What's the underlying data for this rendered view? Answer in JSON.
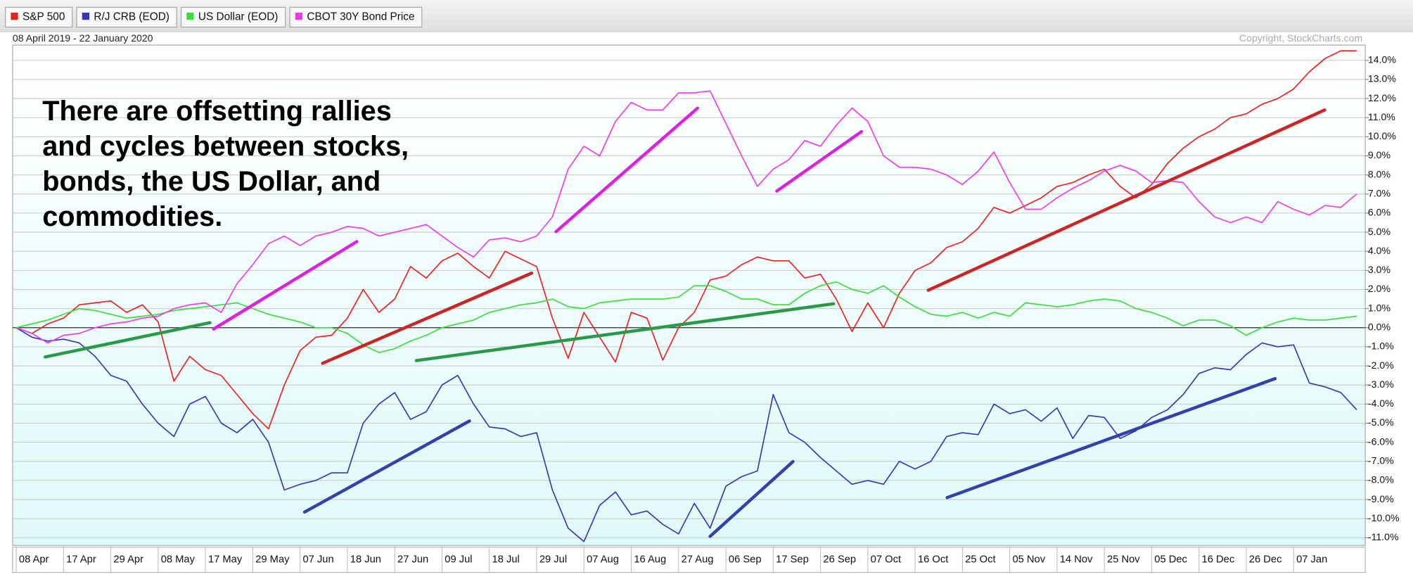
{
  "chart_data": {
    "type": "line",
    "subtitle": "08 April 2019 - 22 January 2020",
    "copyright": "Copyright, StockCharts.com",
    "annotation": [
      "There are offsetting rallies",
      "and cycles between stocks,",
      "bonds, the US Dollar, and",
      "commodities."
    ],
    "categories": [
      "08 Apr",
      null,
      null,
      "17 Apr",
      null,
      null,
      "29 Apr",
      null,
      null,
      "08 May",
      null,
      null,
      "17 May",
      null,
      null,
      "29 May",
      null,
      null,
      "07 Jun",
      null,
      null,
      "18 Jun",
      null,
      null,
      "27 Jun",
      null,
      null,
      "09 Jul",
      null,
      null,
      "18 Jul",
      null,
      null,
      "29 Jul",
      null,
      null,
      "07 Aug",
      null,
      null,
      "16 Aug",
      null,
      null,
      "27 Aug",
      null,
      null,
      "06 Sep",
      null,
      null,
      "17 Sep",
      null,
      null,
      "26 Sep",
      null,
      null,
      "07 Oct",
      null,
      null,
      "16 Oct",
      null,
      null,
      "25 Oct",
      null,
      null,
      "05 Nov",
      null,
      null,
      "14 Nov",
      null,
      null,
      "25 Nov",
      null,
      null,
      "05 Dec",
      null,
      null,
      "16 Dec",
      null,
      null,
      "26 Dec",
      null,
      null,
      "07 Jan",
      null,
      null,
      null,
      null
    ],
    "series": [
      {
        "name": "S&P 500",
        "color": "#e8231f",
        "values": [
          0,
          -0.3,
          0.2,
          0.5,
          1.2,
          1.3,
          1.4,
          0.8,
          1.2,
          0.3,
          -2.8,
          -1.5,
          -2.2,
          -2.5,
          -3.5,
          -4.5,
          -5.3,
          -3,
          -1.2,
          -0.5,
          -0.4,
          0.5,
          2,
          0.8,
          1.5,
          3.2,
          2.6,
          3.5,
          3.9,
          3.2,
          2.6,
          4,
          3.6,
          3.2,
          0.5,
          -1.6,
          0.8,
          -0.5,
          -1.8,
          0.8,
          0.5,
          -1.7,
          0,
          0.8,
          2.5,
          2.7,
          3.3,
          3.7,
          3.5,
          3.5,
          2.6,
          2.8,
          1.5,
          -0.2,
          1.3,
          0,
          1.8,
          3,
          3.4,
          4.2,
          4.5,
          5.2,
          6.3,
          6,
          6.4,
          6.8,
          7.4,
          7.6,
          8,
          8.3,
          7.4,
          6.8,
          7.5,
          8.6,
          9.4,
          10,
          10.4,
          11,
          11.2,
          11.7,
          12,
          12.5,
          13.4,
          14.1,
          14.5,
          14.5
        ]
      },
      {
        "name": "R/J CRB (EOD)",
        "color": "#3b36b8",
        "values": [
          0,
          -0.5,
          -0.7,
          -0.6,
          -0.8,
          -1.5,
          -2.5,
          -2.8,
          -4,
          -5,
          -5.7,
          -4,
          -3.6,
          -5,
          -5.5,
          -4.8,
          -6,
          -8.5,
          -8.2,
          -8,
          -7.6,
          -7.6,
          -5,
          -4,
          -3.4,
          -4.8,
          -4.4,
          -3,
          -2.5,
          -4,
          -5.2,
          -5.3,
          -5.7,
          -5.5,
          -8.5,
          -10.5,
          -11.2,
          -9.3,
          -8.6,
          -9.8,
          -9.6,
          -10.3,
          -10.8,
          -9.2,
          -10.5,
          -8.3,
          -7.8,
          -7.5,
          -3.5,
          -5.5,
          -6,
          -6.8,
          -7.5,
          -8.2,
          -8,
          -8.2,
          -7,
          -7.4,
          -7,
          -5.7,
          -5.5,
          -5.6,
          -4,
          -4.5,
          -4.3,
          -4.9,
          -4.2,
          -5.8,
          -4.6,
          -4.7,
          -5.8,
          -5.4,
          -4.7,
          -4.3,
          -3.5,
          -2.4,
          -2.1,
          -2.2,
          -1.4,
          -0.8,
          -1,
          -0.9,
          -2.9,
          -3.1,
          -3.4,
          -4.3
        ]
      },
      {
        "name": "US Dollar (EOD)",
        "color": "#3ddc3d",
        "values": [
          0,
          0.2,
          0.4,
          0.7,
          1,
          0.9,
          0.7,
          0.5,
          0.6,
          0.7,
          0.9,
          1,
          1.1,
          1.2,
          1.3,
          1,
          0.7,
          0.5,
          0.3,
          0,
          0,
          -0.3,
          -0.9,
          -1.3,
          -1.1,
          -0.7,
          -0.4,
          0,
          0.2,
          0.4,
          0.8,
          1,
          1.2,
          1.3,
          1.5,
          1.1,
          1,
          1.3,
          1.4,
          1.5,
          1.5,
          1.5,
          1.6,
          2.2,
          2.2,
          1.9,
          1.5,
          1.5,
          1.2,
          1.2,
          1.8,
          2.2,
          2.4,
          2,
          1.8,
          2.2,
          1.6,
          1.1,
          0.7,
          0.6,
          0.8,
          0.5,
          0.8,
          0.6,
          1.3,
          1.2,
          1.1,
          1.2,
          1.4,
          1.5,
          1.4,
          1,
          0.8,
          0.5,
          0.1,
          0.4,
          0.4,
          0.1,
          -0.4,
          0,
          0.3,
          0.5,
          0.4,
          0.4,
          0.5,
          0.6
        ]
      },
      {
        "name": "CBOT 30Y Bond Price",
        "color": "#ee3aee",
        "values": [
          0,
          -0.3,
          -0.8,
          -0.4,
          -0.3,
          0,
          0.2,
          0.3,
          0.5,
          0.6,
          1,
          1.2,
          1.3,
          0.8,
          2.3,
          3.3,
          4.4,
          4.8,
          4.3,
          4.8,
          5,
          5.3,
          5.2,
          4.8,
          5,
          5.2,
          5.4,
          4.8,
          4.2,
          3.7,
          4.6,
          4.7,
          4.5,
          4.8,
          5.8,
          8.3,
          9.5,
          9,
          10.8,
          11.8,
          11.4,
          11.4,
          12.3,
          12.3,
          12.4,
          10.7,
          9,
          7.4,
          8.3,
          8.8,
          9.8,
          9.5,
          10.6,
          11.5,
          10.8,
          9,
          8.4,
          8.4,
          8.3,
          8,
          7.5,
          8.2,
          9.2,
          7.6,
          6.2,
          6.2,
          6.8,
          7.3,
          7.7,
          8.2,
          8.5,
          8.2,
          7.6,
          7.7,
          7.6,
          6.6,
          5.8,
          5.5,
          5.8,
          5.5,
          6.6,
          6.2,
          5.9,
          6.4,
          6.3,
          7
        ]
      }
    ],
    "ylim": [
      -11.4,
      14.8
    ],
    "yticks": [
      {
        "value": -11,
        "label": "-11.0%"
      },
      {
        "value": -10,
        "label": "-10.0%"
      },
      {
        "value": -9,
        "label": "-9.0%"
      },
      {
        "value": -8,
        "label": "-8.0%"
      },
      {
        "value": -7,
        "label": "-7.0%"
      },
      {
        "value": -6,
        "label": "-6.0%"
      },
      {
        "value": -5,
        "label": "-5.0%"
      },
      {
        "value": -4,
        "label": "-4.0%"
      },
      {
        "value": -3,
        "label": "-3.0%"
      },
      {
        "value": -2,
        "label": "-2.0%"
      },
      {
        "value": -1,
        "label": "-1.0%"
      },
      {
        "value": 0,
        "label": "0.0%"
      },
      {
        "value": 1,
        "label": "1.0%"
      },
      {
        "value": 2,
        "label": "2.0%"
      },
      {
        "value": 3,
        "label": "3.0%"
      },
      {
        "value": 4,
        "label": "4.0%"
      },
      {
        "value": 5,
        "label": "5.0%"
      },
      {
        "value": 6,
        "label": "6.0%"
      },
      {
        "value": 7,
        "label": "7.0%"
      },
      {
        "value": 8,
        "label": "8.0%"
      },
      {
        "value": 9,
        "label": "9.0%"
      },
      {
        "value": 10,
        "label": "10.0%"
      },
      {
        "value": 11,
        "label": "11.0%"
      },
      {
        "value": 12,
        "label": "12.0%"
      },
      {
        "value": 13,
        "label": "13.0%"
      },
      {
        "value": 14,
        "label": "14.0%"
      }
    ],
    "grid": true,
    "legend": "top"
  }
}
